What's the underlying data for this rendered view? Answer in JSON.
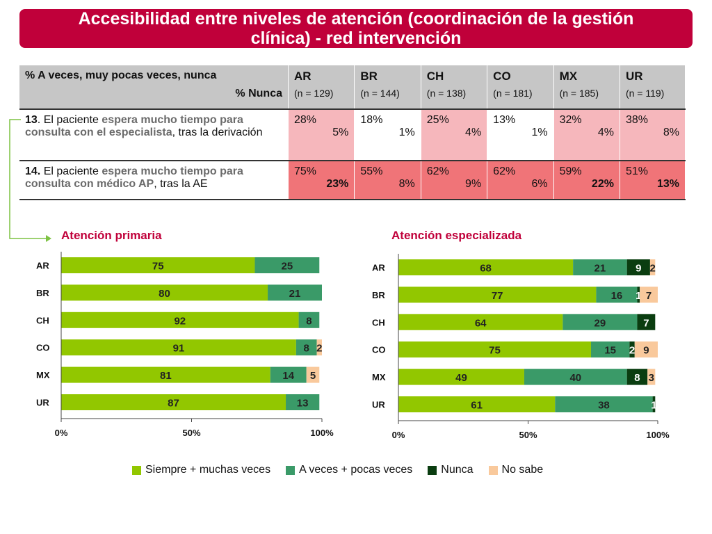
{
  "title": {
    "line1": "Accesibilidad entre niveles de atención (coordinación de la gestión",
    "line2": "clínica) - red intervención"
  },
  "table": {
    "header_line1": "% A veces, muy pocas veces, nunca",
    "header_line2": "% Nunca",
    "columns": [
      {
        "name": "AR",
        "n": "(n = 129)"
      },
      {
        "name": "BR",
        "n": "(n = 144)"
      },
      {
        "name": "CH",
        "n": "(n = 138)"
      },
      {
        "name": "CO",
        "n": "(n = 181)"
      },
      {
        "name": "MX",
        "n": "(n = 185)"
      },
      {
        "name": "UR",
        "n": "(n = 119)"
      }
    ],
    "rows": [
      {
        "num": "13",
        "pre": ". El paciente ",
        "hl": "espera mucho tiempo para consulta con el especialista",
        "post": ", tras la derivación",
        "cells": [
          {
            "p": "28%",
            "n": "5%"
          },
          {
            "p": "18%",
            "n": "1%"
          },
          {
            "p": "25%",
            "n": "4%"
          },
          {
            "p": "13%",
            "n": "1%"
          },
          {
            "p": "32%",
            "n": "4%"
          },
          {
            "p": "38%",
            "n": "8%"
          }
        ]
      },
      {
        "num": "14.",
        "pre": " El paciente ",
        "hl": "espera mucho tiempo para consulta con médico AP",
        "post": ", tras la AE",
        "cells": [
          {
            "p": "75%",
            "n": "23%"
          },
          {
            "p": "55%",
            "n": "8%"
          },
          {
            "p": "62%",
            "n": "9%"
          },
          {
            "p": "62%",
            "n": "6%"
          },
          {
            "p": "59%",
            "n": "22%"
          },
          {
            "p": "51%",
            "n": "13%"
          }
        ]
      }
    ]
  },
  "legend": [
    {
      "label": "Siempre + muchas veces",
      "color": "#92c700"
    },
    {
      "label": "A veces + pocas veces",
      "color": "#3a9a68"
    },
    {
      "label": "Nunca",
      "color": "#0a3d10"
    },
    {
      "label": "No sabe",
      "color": "#f9c99c"
    }
  ],
  "chart_data": [
    {
      "type": "bar",
      "orientation": "horizontal",
      "stacked": true,
      "title": "Atención primaria",
      "categories": [
        "AR",
        "BR",
        "CH",
        "CO",
        "MX",
        "UR"
      ],
      "series": [
        {
          "name": "Siempre + muchas veces",
          "values": [
            75,
            80,
            92,
            91,
            81,
            87
          ]
        },
        {
          "name": "A veces + pocas veces",
          "values": [
            25,
            21,
            8,
            8,
            14,
            13
          ]
        },
        {
          "name": "Nunca",
          "values": [
            0,
            0,
            0,
            0,
            0,
            0
          ]
        },
        {
          "name": "No sabe",
          "values": [
            0,
            0,
            0,
            2,
            5,
            0
          ]
        }
      ],
      "xticks": [
        "0%",
        "50%",
        "100%"
      ],
      "xlim": [
        0,
        100
      ]
    },
    {
      "type": "bar",
      "orientation": "horizontal",
      "stacked": true,
      "title": "Atención especializada",
      "categories": [
        "AR",
        "BR",
        "CH",
        "CO",
        "MX",
        "UR"
      ],
      "series": [
        {
          "name": "Siempre + muchas veces",
          "values": [
            68,
            77,
            64,
            75,
            49,
            61
          ]
        },
        {
          "name": "A veces + pocas veces",
          "values": [
            21,
            16,
            29,
            15,
            40,
            38
          ]
        },
        {
          "name": "Nunca",
          "values": [
            9,
            1,
            7,
            2,
            8,
            1
          ]
        },
        {
          "name": "No sabe",
          "values": [
            2,
            7,
            0,
            9,
            3,
            0
          ]
        }
      ],
      "xticks": [
        "0%",
        "50%",
        "100%"
      ],
      "xlim": [
        0,
        100
      ]
    }
  ]
}
